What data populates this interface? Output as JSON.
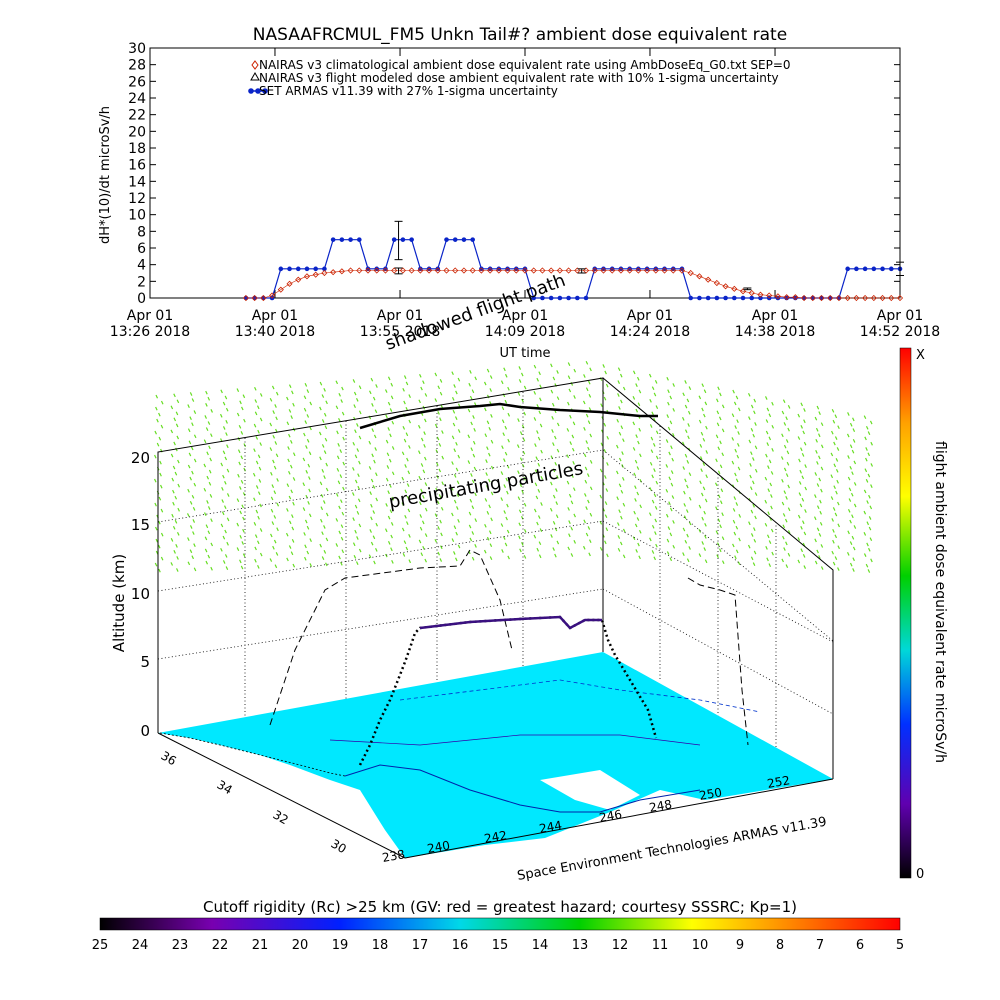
{
  "chart_data": [
    {
      "type": "line",
      "title": "NASAAFRCMUL_FM5 Unkn Tail#? ambient dose equivalent rate",
      "ylabel": "dH*(10)/dt microSv/h",
      "xlabel": "UT time",
      "ylim": [
        0,
        30
      ],
      "yticks": [
        "0",
        "2",
        "4",
        "6",
        "8",
        "10",
        "12",
        "14",
        "16",
        "18",
        "20",
        "22",
        "24",
        "26",
        "28",
        "30"
      ],
      "xlim": [
        0,
        86
      ],
      "xticks": [
        {
          "top": "Apr 01",
          "bottom": "13:26 2018",
          "x": 0
        },
        {
          "top": "Apr 01",
          "bottom": "13:40 2018",
          "x": 14.33
        },
        {
          "top": "Apr 01",
          "bottom": "13:55 2018",
          "x": 28.67
        },
        {
          "top": "Apr 01",
          "bottom": "14:09 2018",
          "x": 43
        },
        {
          "top": "Apr 01",
          "bottom": "14:24 2018",
          "x": 57.33
        },
        {
          "top": "Apr 01",
          "bottom": "14:38 2018",
          "x": 71.67
        },
        {
          "top": "Apr 01",
          "bottom": "14:52 2018",
          "x": 86
        }
      ],
      "legend": [
        {
          "marker": "diamond",
          "color": "#cc2200",
          "label": "NAIRAS v3 climatological ambient dose equivalent rate using AmbDoseEq_G0.txt SEP=0"
        },
        {
          "marker": "triangle",
          "color": "#000000",
          "label": "NAIRAS v3 flight modeled dose ambient equivalent rate with 10% 1-sigma uncertainty"
        },
        {
          "marker": "circle",
          "color": "#0a24c8",
          "label": "SET ARMAS v11.39 with 27% 1-sigma uncertainty"
        }
      ],
      "series": [
        {
          "name": "SET ARMAS v11.39 with 27% 1-sigma uncertainty",
          "color": "#0a24c8",
          "x": [
            11,
            12,
            13,
            14,
            15,
            16,
            17,
            18,
            19,
            20,
            21,
            22,
            23,
            24,
            25,
            26,
            27,
            28,
            29,
            30,
            31,
            32,
            33,
            34,
            35,
            36,
            37,
            38,
            39,
            40,
            41,
            42,
            43,
            44,
            45,
            46,
            47,
            48,
            49,
            50,
            51,
            52,
            53,
            54,
            55,
            56,
            57,
            58,
            59,
            60,
            61,
            62,
            63,
            64,
            65,
            66,
            67,
            68,
            69,
            70,
            71,
            72,
            73,
            74,
            75,
            76,
            77,
            78,
            79,
            80,
            81,
            82,
            83,
            84,
            85,
            86
          ],
          "y": [
            0,
            0,
            0,
            0,
            3.5,
            3.5,
            3.5,
            3.5,
            3.5,
            3.5,
            7,
            7,
            7,
            7,
            3.5,
            3.5,
            3.5,
            7,
            7,
            7,
            3.5,
            3.5,
            3.5,
            7,
            7,
            7,
            7,
            3.5,
            3.5,
            3.5,
            3.5,
            3.5,
            3.5,
            0,
            0,
            0,
            0,
            0,
            0,
            0,
            3.5,
            3.5,
            3.5,
            3.5,
            3.5,
            3.5,
            3.5,
            3.5,
            3.5,
            3.5,
            3.5,
            0,
            0,
            0,
            0,
            0,
            0,
            0,
            0,
            0,
            0,
            0,
            0,
            0,
            0,
            0,
            0,
            0,
            0,
            3.5,
            3.5,
            3.5,
            3.5,
            3.5,
            3.5,
            3.5
          ]
        },
        {
          "name": "NAIRAS v3 climatological ambient dose equivalent rate using AmbDoseEq_G0.txt SEP=0",
          "color": "#cc2200",
          "x": [
            11,
            12,
            13,
            14,
            15,
            16,
            17,
            18,
            19,
            20,
            21,
            22,
            23,
            24,
            25,
            26,
            27,
            28,
            29,
            30,
            31,
            32,
            33,
            34,
            35,
            36,
            37,
            38,
            39,
            40,
            41,
            42,
            43,
            44,
            45,
            46,
            47,
            48,
            49,
            50,
            51,
            52,
            53,
            54,
            55,
            56,
            57,
            58,
            59,
            60,
            61,
            62,
            63,
            64,
            65,
            66,
            67,
            68,
            69,
            70,
            71,
            72,
            73,
            74,
            75,
            76,
            77,
            78,
            79,
            80,
            81,
            82,
            83,
            84,
            85,
            86
          ],
          "y": [
            0,
            0,
            0,
            0.3,
            1,
            1.7,
            2.2,
            2.6,
            2.8,
            3,
            3.1,
            3.2,
            3.3,
            3.3,
            3.3,
            3.3,
            3.3,
            3.3,
            3.3,
            3.3,
            3.3,
            3.3,
            3.3,
            3.3,
            3.3,
            3.3,
            3.3,
            3.3,
            3.3,
            3.3,
            3.3,
            3.3,
            3.3,
            3.3,
            3.3,
            3.3,
            3.3,
            3.3,
            3.3,
            3.3,
            3.3,
            3.3,
            3.3,
            3.3,
            3.3,
            3.3,
            3.3,
            3.3,
            3.3,
            3.3,
            3.3,
            3,
            2.6,
            2.2,
            1.8,
            1.4,
            1.1,
            0.8,
            0.6,
            0.4,
            0.3,
            0.2,
            0.1,
            0.1,
            0,
            0,
            0,
            0,
            0,
            0,
            0,
            0,
            0,
            0,
            0,
            0
          ]
        }
      ],
      "error_bars": [
        {
          "x": 28.5,
          "y": 7,
          "low": 4.6,
          "high": 9.2
        },
        {
          "x": 28.5,
          "y": 3.2,
          "low": 2.9,
          "high": 3.6
        },
        {
          "x": 49.5,
          "y": 3.2,
          "low": 3.0,
          "high": 3.5
        },
        {
          "x": 68.5,
          "y": 1.1,
          "low": 1.0,
          "high": 1.2
        },
        {
          "x": 86,
          "y": 3.5,
          "low": 2.7,
          "high": 4.3
        }
      ]
    },
    {
      "type": "3d-flight-path",
      "zlabel": "Altitude (km)",
      "zticks": [
        "0",
        "5",
        "10",
        "15",
        "20"
      ],
      "zlim": [
        0,
        20
      ],
      "lon_ticks": [
        "238",
        "240",
        "242",
        "244",
        "246",
        "248",
        "250",
        "252"
      ],
      "lat_ticks": [
        "30",
        "32",
        "34",
        "36"
      ],
      "annotations": [
        "shadowed flight path",
        "precipitating particles"
      ],
      "credit": "Space Environment Technologies ARMAS v11.39",
      "right_colorbar": {
        "label": "flight ambient dose equivalent rate microSv/h",
        "min_label": "0",
        "max_label": "X",
        "colors": [
          "#ff0000",
          "#ffa000",
          "#ffff00",
          "#00d000",
          "#00d8d8",
          "#0030ff",
          "#6000b0",
          "#000000"
        ]
      },
      "bottom_colorbar": {
        "label": "Cutoff rigidity (Rc) >25 km (GV: red = greatest hazard; courtesy SSSRC; Kp=1)",
        "ticks": [
          "25",
          "24",
          "23",
          "22",
          "21",
          "20",
          "19",
          "18",
          "17",
          "16",
          "15",
          "14",
          "13",
          "12",
          "11",
          "10",
          "9",
          "8",
          "7",
          "6",
          "5"
        ],
        "colors": [
          "#000000",
          "#7800b0",
          "#0020ff",
          "#00d8e8",
          "#00d000",
          "#ffff00",
          "#ff8000",
          "#ff0000"
        ]
      },
      "surface_color": "#00e8ff",
      "particle_color": "#66dd22"
    }
  ]
}
